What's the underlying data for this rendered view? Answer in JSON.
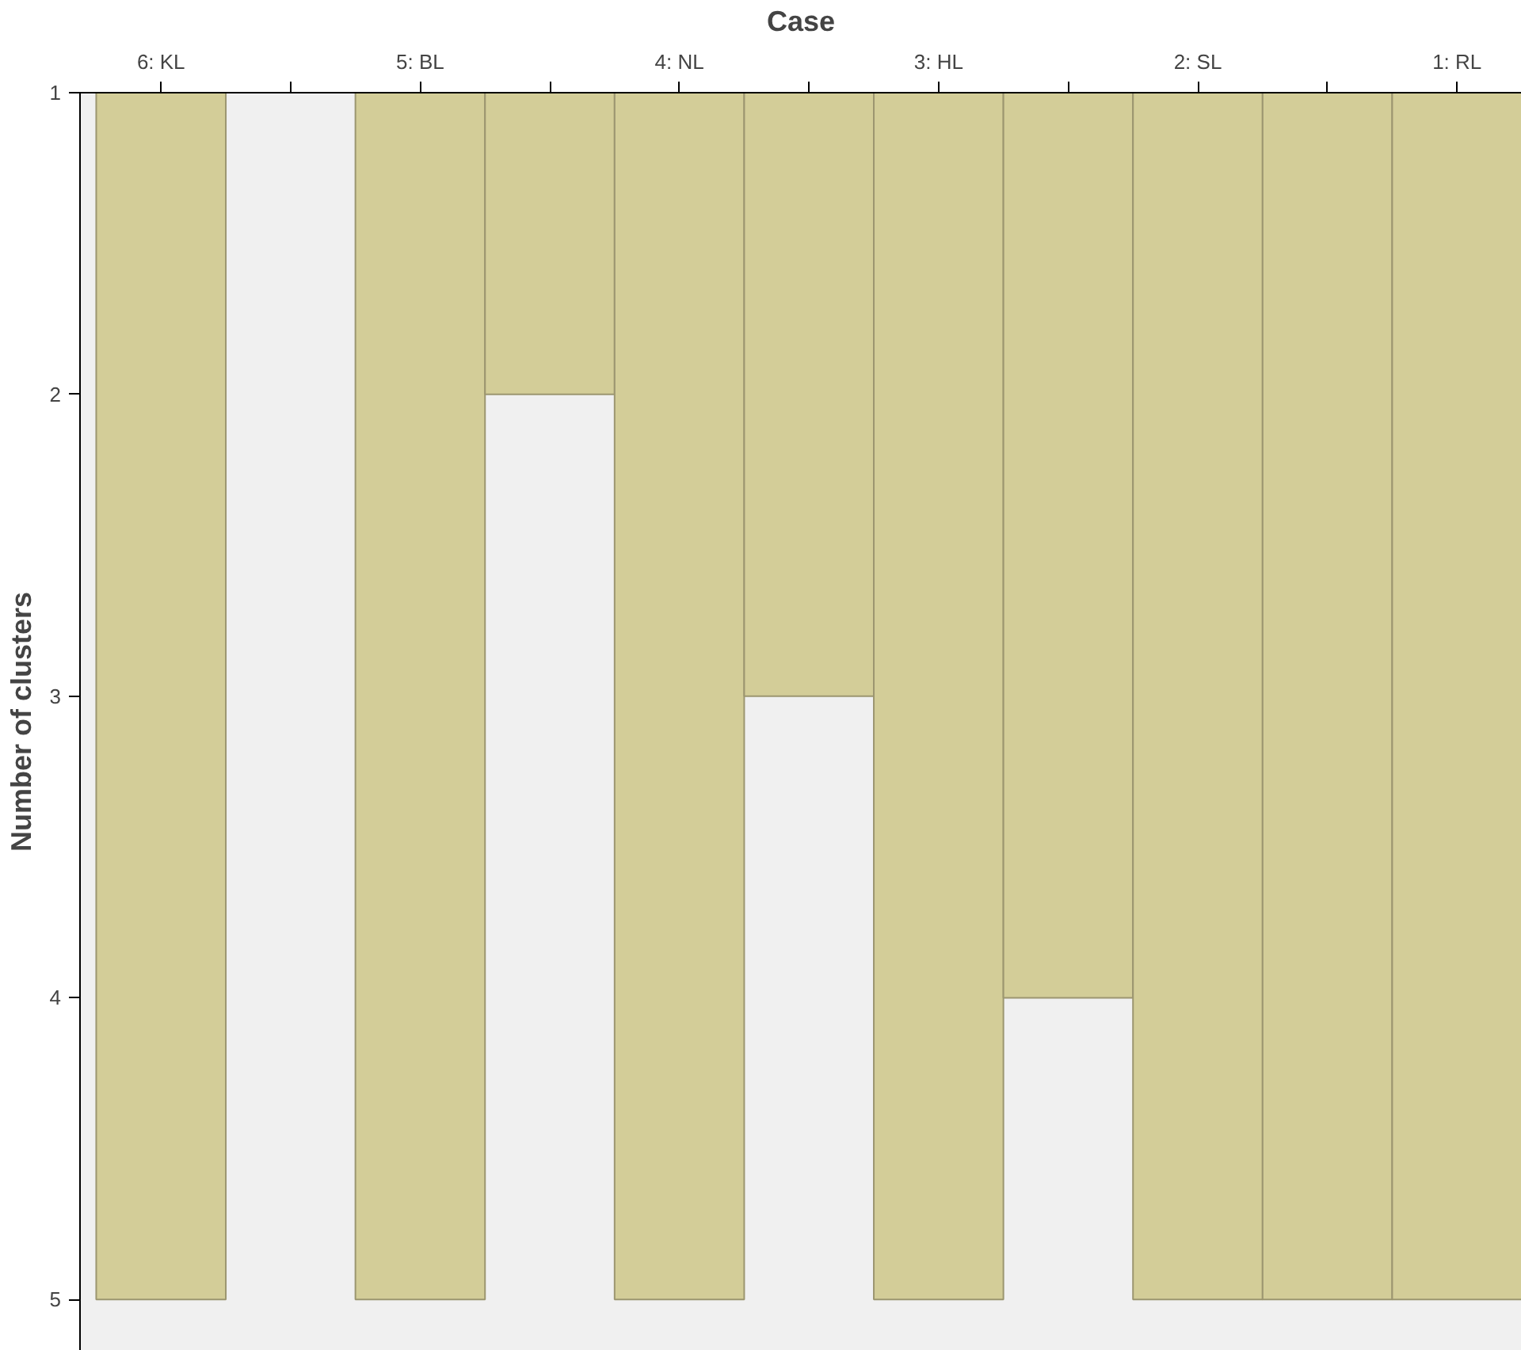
{
  "chart_data": {
    "type": "bar",
    "xlabel": "Case",
    "ylabel": "Number of clusters",
    "categories": [
      "6: KL",
      null,
      "5: BL",
      null,
      "4: NL",
      null,
      "3: HL",
      null,
      "2: SL",
      null,
      "1: RL"
    ],
    "base": [
      1,
      null,
      1,
      1,
      1,
      1,
      1,
      1,
      1,
      1,
      1
    ],
    "values": [
      4,
      null,
      4,
      1,
      4,
      2,
      4,
      3,
      4,
      4,
      4
    ],
    "color": "#d3cd98",
    "ylim": [
      5.17,
      1
    ],
    "yticks": [
      1,
      2,
      3,
      4,
      5
    ],
    "grid": false
  }
}
